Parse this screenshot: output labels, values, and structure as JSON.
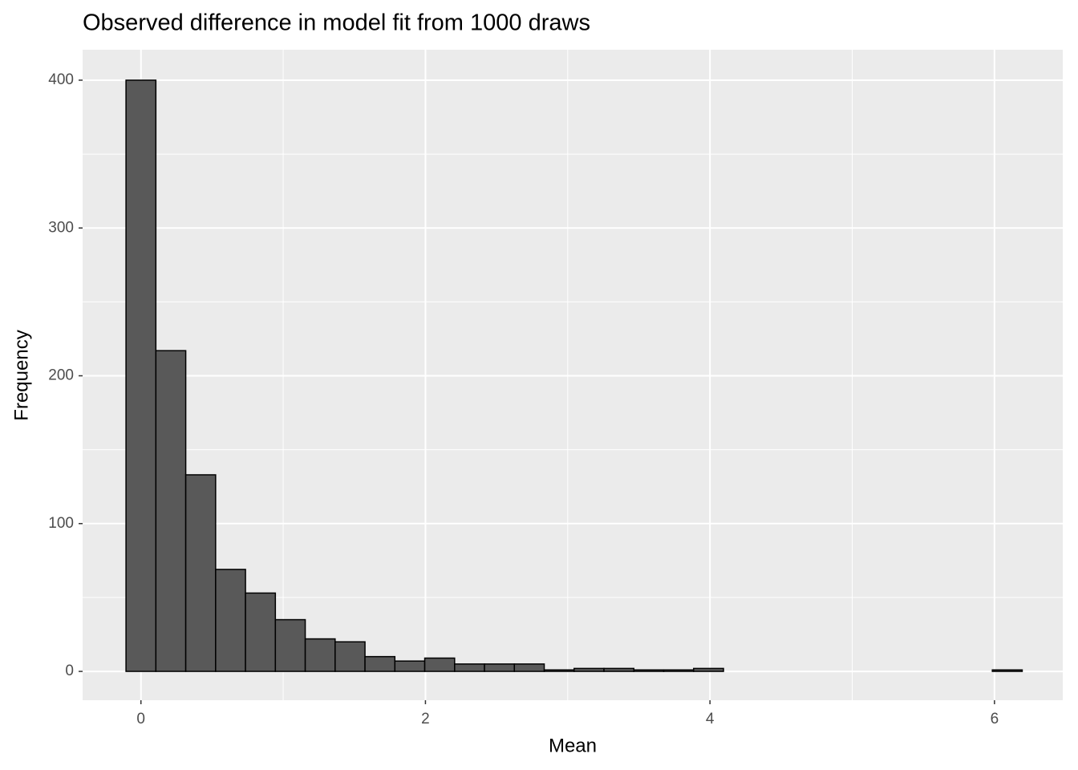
{
  "chart_data": {
    "type": "histogram",
    "title": "Observed difference in model fit from 1000 draws",
    "x_label": "Mean",
    "y_label": "Frequency",
    "bins": [
      -0.105,
      0.105,
      0.315,
      0.525,
      0.735,
      0.945,
      1.155,
      1.365,
      1.575,
      1.785,
      1.995,
      2.205,
      2.415,
      2.625,
      2.835,
      3.045,
      3.255,
      3.465,
      3.675,
      3.885,
      4.095,
      4.305,
      4.515,
      4.725,
      4.935,
      5.145,
      5.355,
      5.565,
      5.775,
      5.985,
      6.195
    ],
    "values": [
      400,
      217,
      133,
      69,
      53,
      35,
      22,
      20,
      10,
      7,
      9,
      5,
      5,
      5,
      1,
      2,
      2,
      1,
      1,
      2,
      0,
      0,
      0,
      0,
      0,
      0,
      0,
      0,
      0,
      1
    ],
    "color": "#595959",
    "edge_color": "#000000",
    "xlim": [
      -0.41,
      6.48
    ],
    "ylim": [
      -19.5,
      420.6
    ],
    "xticks": [
      0,
      2,
      4,
      6
    ],
    "yticks": [
      0,
      100,
      200,
      300,
      400
    ],
    "grid": true
  }
}
